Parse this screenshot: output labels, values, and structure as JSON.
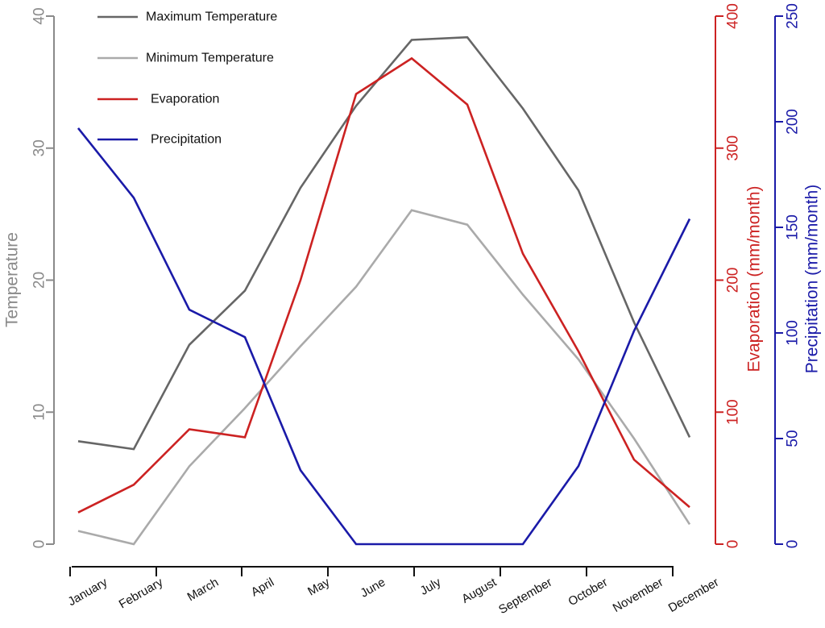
{
  "chart_data": {
    "type": "line",
    "categories": [
      "January",
      "February",
      "March",
      "April",
      "May",
      "June",
      "July",
      "August",
      "September",
      "October",
      "November",
      "December"
    ],
    "y_left": {
      "label": "Temperature",
      "range": [
        0,
        40
      ],
      "ticks": [
        0,
        10,
        20,
        30,
        40
      ],
      "tick_labels": [
        "0",
        "10",
        "20",
        "30",
        "40"
      ],
      "color": "#8a8a8a"
    },
    "y_right_1": {
      "label": "Evaporation (mm/month)",
      "range": [
        0,
        400
      ],
      "ticks": [
        0,
        100,
        200,
        300,
        400
      ],
      "tick_labels": [
        "0",
        "100",
        "200",
        "300",
        "400"
      ],
      "color": "#cc2222"
    },
    "y_right_2": {
      "label": "Precipitation (mm/month)",
      "range": [
        0,
        250
      ],
      "ticks": [
        0,
        50,
        100,
        150,
        200,
        250
      ],
      "tick_labels": [
        "0",
        "50",
        "100",
        "150",
        "200",
        "250"
      ],
      "color": "#1a1aa8"
    },
    "series": [
      {
        "name": "Maximum Temperature",
        "axis": "y_left",
        "color": "#666666",
        "values": [
          7.8,
          7.2,
          15.1,
          19.2,
          27.0,
          33.2,
          38.2,
          38.4,
          33.0,
          26.8,
          16.8,
          8.1
        ]
      },
      {
        "name": "Minimum Temperature",
        "axis": "y_left",
        "color": "#aaaaaa",
        "values": [
          1.0,
          0.0,
          5.9,
          10.3,
          15.0,
          19.5,
          25.3,
          24.2,
          18.9,
          14.0,
          8.0,
          1.5
        ]
      },
      {
        "name": "Evaporation",
        "axis": "y_right_1",
        "color": "#cc2222",
        "values": [
          24,
          45,
          87,
          81,
          200,
          341,
          368,
          333,
          220,
          146,
          64,
          28
        ]
      },
      {
        "name": "Precipitation",
        "axis": "y_right_2",
        "color": "#1a1aa8",
        "values": [
          197,
          164,
          111,
          98,
          35,
          0,
          0,
          0,
          0,
          37,
          101,
          154
        ]
      }
    ],
    "legend": {
      "position": "top-left",
      "entries": [
        "Maximum Temperature",
        "Minimum Temperature",
        "Evaporation",
        "Precipitation"
      ]
    }
  }
}
